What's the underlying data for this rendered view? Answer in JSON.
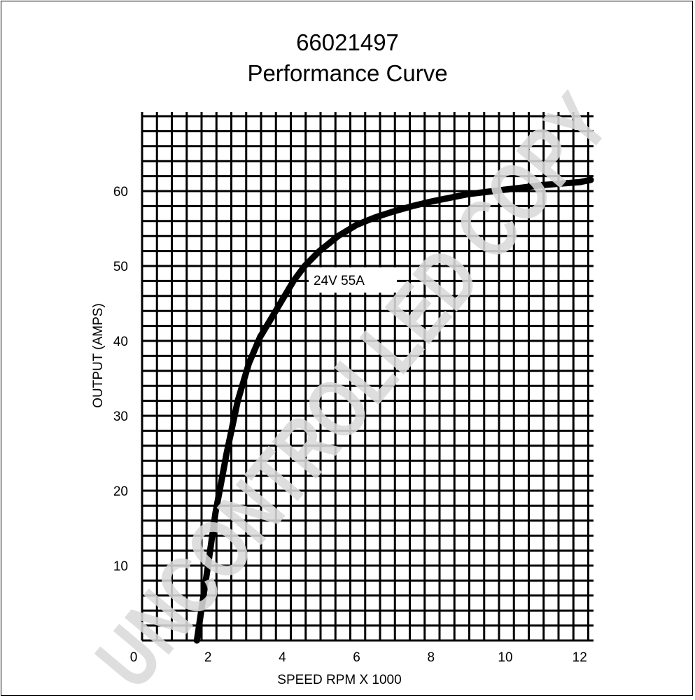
{
  "chart_data": {
    "type": "line",
    "title": "66021497",
    "subtitle": "Performance Curve",
    "xlabel": "SPEED RPM X 1000",
    "ylabel": "OUTPUT (AMPS)",
    "xlim": [
      0,
      12.3
    ],
    "ylim": [
      0,
      70.6
    ],
    "x_ticks": [
      0,
      2,
      4,
      6,
      8,
      10,
      12
    ],
    "y_ticks": [
      10,
      20,
      30,
      40,
      50,
      60
    ],
    "grid": true,
    "grid_step_x": 0.4,
    "grid_step_y": 2,
    "series": [
      {
        "name": "24V 55A",
        "x": [
          1.7,
          1.85,
          2.0,
          2.2,
          2.5,
          2.8,
          3.1,
          3.4,
          3.7,
          4.0,
          4.3,
          4.6,
          5.0,
          5.5,
          6.0,
          6.5,
          7.0,
          7.5,
          8.0,
          8.5,
          9.0,
          9.5,
          10.0,
          10.5,
          11.0,
          11.5,
          12.0,
          12.3
        ],
        "y": [
          0,
          5,
          10,
          17,
          25,
          32,
          37,
          40.5,
          43,
          45.5,
          48,
          50,
          52,
          54,
          55.5,
          56.5,
          57.3,
          58,
          58.6,
          59.1,
          59.6,
          59.9,
          60.2,
          60.5,
          60.8,
          61.0,
          61.2,
          61.5
        ]
      }
    ],
    "annotations": [
      "24V 55A"
    ],
    "watermark": "UNCONTROLLED COPY",
    "colors": {
      "line": "#000000",
      "grid": "#000000",
      "watermark": "#d9d9d9"
    }
  }
}
